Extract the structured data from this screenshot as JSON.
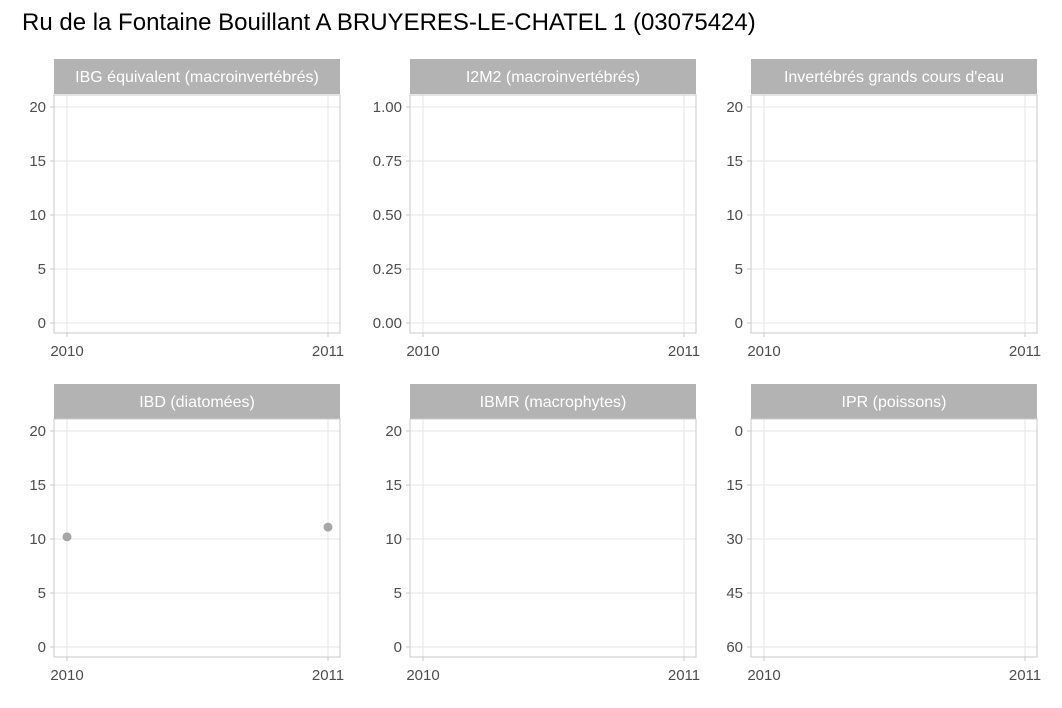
{
  "chart_data": {
    "title": "Ru de la Fontaine Bouillant A BRUYERES-LE-CHATEL 1 (03075424)",
    "type": "scatter",
    "colors": {
      "strip_background": "#b3b3b3",
      "strip_text": "#ffffff",
      "grid": "#e5e5e5",
      "panel_border": "#c8c8c8",
      "point": "#a6a6a6",
      "tick_label": "#4d4d4d"
    },
    "x_ticks": [
      2010,
      2011
    ],
    "xlim": [
      2010,
      2011
    ],
    "panels": [
      {
        "title": "IBG équivalent (macroinvertébrés)",
        "ylim": [
          0,
          20
        ],
        "y_ticks": [
          "0",
          "5",
          "10",
          "15",
          "20"
        ],
        "reversed": false,
        "points": []
      },
      {
        "title": "I2M2 (macroinvertébrés)",
        "ylim": [
          0,
          1
        ],
        "y_ticks": [
          "0.00",
          "0.25",
          "0.50",
          "0.75",
          "1.00"
        ],
        "reversed": false,
        "points": []
      },
      {
        "title": "Invertébrés grands cours d'eau",
        "ylim": [
          0,
          20
        ],
        "y_ticks": [
          "0",
          "5",
          "10",
          "15",
          "20"
        ],
        "reversed": false,
        "points": []
      },
      {
        "title": "IBD (diatomées)",
        "ylim": [
          0,
          20
        ],
        "y_ticks": [
          "0",
          "5",
          "10",
          "15",
          "20"
        ],
        "reversed": false,
        "points": [
          {
            "x": 2010,
            "y": 10.2
          },
          {
            "x": 2011,
            "y": 11.1
          }
        ]
      },
      {
        "title": "IBMR (macrophytes)",
        "ylim": [
          0,
          20
        ],
        "y_ticks": [
          "0",
          "5",
          "10",
          "15",
          "20"
        ],
        "reversed": false,
        "points": []
      },
      {
        "title": "IPR (poissons)",
        "ylim": [
          0,
          60
        ],
        "y_ticks": [
          "0",
          "15",
          "30",
          "45",
          "60"
        ],
        "reversed": true,
        "points": []
      }
    ]
  }
}
